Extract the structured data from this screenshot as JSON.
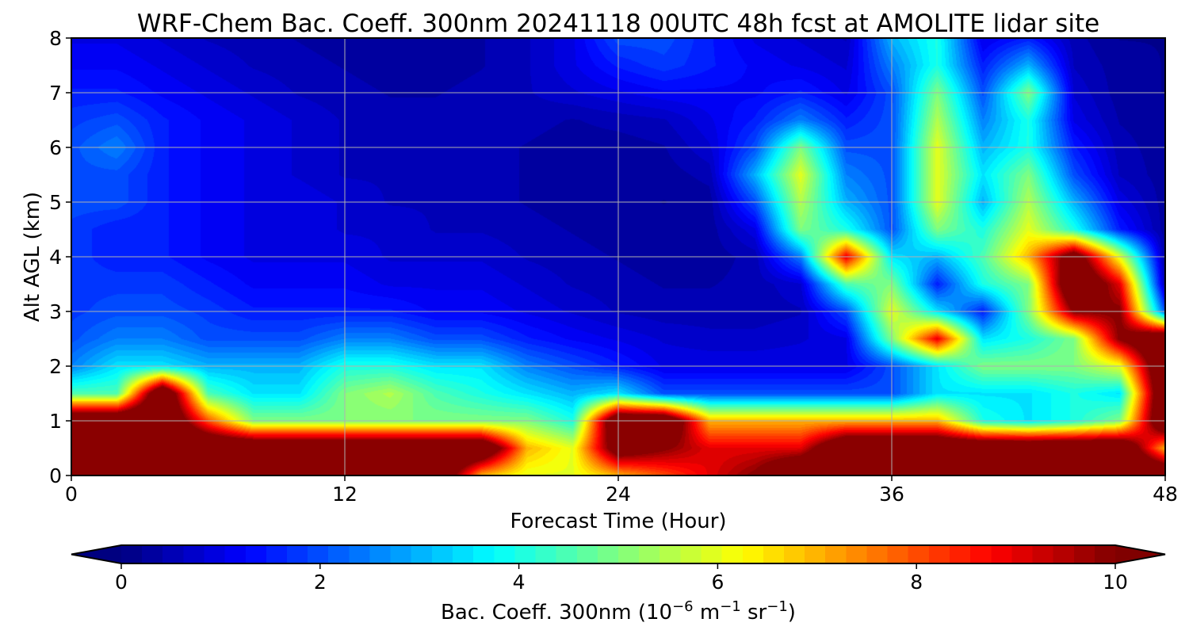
{
  "chart_data": {
    "type": "heatmap",
    "title": "WRF-Chem Bac. Coeff. 300nm  20241118 00UTC 48h fcst at AMOLITE lidar site",
    "xlabel": "Forecast Time (Hour)",
    "ylabel": "Alt AGL (km)",
    "xlim": [
      0,
      48
    ],
    "ylim": [
      0,
      8
    ],
    "xticks": [
      "0",
      "12",
      "24",
      "36",
      "48"
    ],
    "yticks": [
      "0",
      "1",
      "2",
      "3",
      "4",
      "5",
      "6",
      "7",
      "8"
    ],
    "grid": true,
    "colormap": "jet",
    "colorbar": {
      "orientation": "horizontal",
      "placement": "bottom",
      "label_prefix": "Bac. Coeff. 300nm  (10",
      "label_exp1": "−6",
      "label_mid1": " m",
      "label_exp2": "−1",
      "label_mid2": " sr",
      "label_exp3": "−1",
      "label_suffix": ")",
      "vmin": 0,
      "vmax": 10,
      "ticks": [
        "0",
        "2",
        "4",
        "6",
        "8",
        "10"
      ],
      "extend": "both"
    },
    "x": [
      0,
      2,
      4,
      6,
      8,
      10,
      12,
      14,
      16,
      18,
      20,
      22,
      24,
      26,
      28,
      30,
      32,
      34,
      36,
      38,
      40,
      42,
      44,
      46,
      48
    ],
    "y": [
      0,
      0.5,
      1,
      1.5,
      2,
      2.5,
      3,
      3.5,
      4,
      4.5,
      5,
      5.5,
      6,
      6.5,
      7,
      7.5,
      8
    ],
    "z": [
      [
        12,
        12,
        12,
        12,
        12,
        12,
        12,
        12,
        12,
        7,
        6,
        6,
        7,
        8,
        9,
        10,
        12,
        12,
        12,
        12,
        12,
        12,
        12,
        12,
        12
      ],
      [
        12,
        12,
        12,
        12,
        12,
        12,
        12,
        12,
        12,
        12,
        7,
        6,
        11,
        10,
        9,
        9,
        9,
        12,
        12,
        12,
        12,
        12,
        12,
        12,
        7
      ],
      [
        12,
        12,
        12,
        8,
        5,
        5,
        5,
        5,
        5,
        5,
        5,
        4,
        12,
        12,
        7,
        7,
        7,
        7,
        7,
        7,
        4,
        3.5,
        4,
        5,
        12
      ],
      [
        4.5,
        4.5,
        12,
        4.5,
        3.5,
        3.5,
        5,
        5.5,
        4.5,
        4,
        3.5,
        3,
        3.5,
        2,
        2,
        2,
        2,
        2,
        2,
        3.5,
        3.5,
        3.5,
        4,
        3.5,
        12
      ],
      [
        2.5,
        3.5,
        3.5,
        3,
        3,
        3,
        4,
        4,
        3.5,
        3.5,
        2.5,
        2,
        1.5,
        1,
        1,
        1,
        1,
        1,
        2,
        3.5,
        5,
        5,
        5,
        6,
        12
      ],
      [
        2,
        2.5,
        2.5,
        2,
        2,
        2,
        2.5,
        2.5,
        2,
        2,
        1.5,
        1.2,
        1,
        0.8,
        0.7,
        0.7,
        0.8,
        1,
        5,
        9,
        3.5,
        4,
        5,
        10,
        12
      ],
      [
        1.8,
        2,
        2,
        1.8,
        1.5,
        1.5,
        1.5,
        1.5,
        1.2,
        1.2,
        1,
        0.8,
        0.6,
        0.5,
        0.5,
        0.5,
        0.6,
        2,
        6,
        3.5,
        1.5,
        5,
        10,
        10,
        2
      ],
      [
        1.8,
        1.8,
        1.8,
        1.5,
        1.2,
        1.2,
        1.2,
        1,
        1,
        1,
        0.8,
        0.6,
        0.5,
        0.4,
        0.4,
        0.5,
        0.8,
        4.5,
        5,
        1.5,
        4,
        5,
        12,
        9,
        0.4
      ],
      [
        1.8,
        1.5,
        1.5,
        1.2,
        1,
        1,
        1,
        0.8,
        0.8,
        0.8,
        0.6,
        0.5,
        0.4,
        0.3,
        0.3,
        0.5,
        2.5,
        9,
        3.5,
        3,
        4.5,
        7,
        11,
        6,
        0.3
      ],
      [
        1.8,
        1.5,
        1.5,
        1.2,
        1,
        1,
        0.8,
        0.8,
        0.6,
        0.6,
        0.5,
        0.4,
        0.3,
        0.3,
        0.3,
        1,
        5,
        4,
        2,
        5,
        4,
        6,
        4,
        1.5,
        0.3
      ],
      [
        2,
        2,
        1.5,
        1.2,
        1,
        1,
        0.8,
        0.6,
        0.6,
        0.5,
        0.4,
        0.3,
        0.3,
        0.2,
        0.3,
        2,
        5.5,
        3,
        2,
        6,
        3,
        5.5,
        3,
        1,
        0.3
      ],
      [
        2,
        2,
        1.5,
        1.2,
        1,
        0.8,
        0.6,
        0.6,
        0.5,
        0.5,
        0.4,
        0.3,
        0.3,
        0.3,
        0.5,
        3,
        6,
        2.5,
        2,
        6,
        3.5,
        5,
        2,
        0.6,
        0.3
      ],
      [
        2,
        2.5,
        1.5,
        1.2,
        1,
        0.8,
        0.6,
        0.5,
        0.5,
        0.5,
        0.4,
        0.3,
        0.3,
        0.4,
        0.8,
        2,
        5,
        2,
        2,
        6,
        3,
        4,
        1.5,
        0.5,
        0.3
      ],
      [
        1.8,
        2,
        1.5,
        1.2,
        1,
        0.8,
        0.6,
        0.5,
        0.5,
        0.5,
        0.5,
        0.4,
        0.5,
        0.6,
        1,
        1.5,
        2.5,
        1.5,
        2,
        5.5,
        2.5,
        4,
        1,
        0.4,
        0.3
      ],
      [
        1.5,
        1.5,
        1.2,
        1,
        0.8,
        0.6,
        0.5,
        0.4,
        0.4,
        0.5,
        0.6,
        0.8,
        1,
        1.2,
        1.2,
        1.2,
        1.5,
        1,
        2,
        5,
        2,
        5,
        0.8,
        0.3,
        0.2
      ],
      [
        1.2,
        1.2,
        1,
        0.8,
        0.6,
        0.5,
        0.4,
        0.3,
        0.3,
        0.4,
        0.6,
        1,
        1.5,
        1.8,
        1.5,
        1.2,
        1,
        0.8,
        2.5,
        4,
        1.5,
        3,
        0.6,
        0.3,
        0.2
      ],
      [
        1,
        1,
        0.8,
        0.6,
        0.5,
        0.4,
        0.3,
        0.3,
        0.3,
        0.4,
        0.6,
        1,
        2,
        2,
        1.5,
        1,
        0.8,
        0.6,
        3,
        4,
        1,
        1.5,
        0.5,
        0.2,
        0.2
      ]
    ]
  }
}
